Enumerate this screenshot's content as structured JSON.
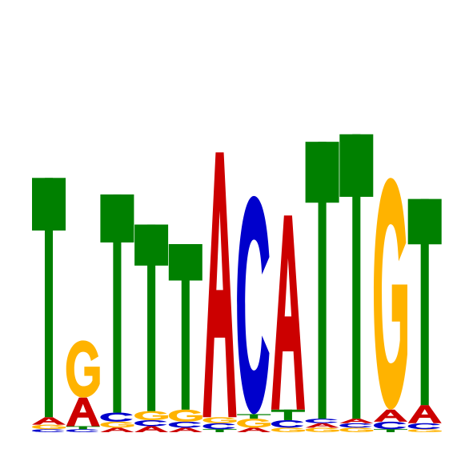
{
  "chart_data": {
    "type": "sequence-logo",
    "title": "",
    "xlabel": "",
    "ylabel": "",
    "ylim": [
      0,
      2
    ],
    "colors": {
      "A": "#cc0000",
      "C": "#0000cc",
      "G": "#ffb300",
      "T": "#008000"
    },
    "positions": [
      {
        "pos": 1,
        "letters": [
          {
            "base": "C",
            "height": 0.02
          },
          {
            "base": "G",
            "height": 0.03
          },
          {
            "base": "A",
            "height": 0.05
          },
          {
            "base": "T",
            "height": 1.59
          }
        ]
      },
      {
        "pos": 2,
        "letters": [
          {
            "base": "C",
            "height": 0.02
          },
          {
            "base": "T",
            "height": 0.02
          },
          {
            "base": "A",
            "height": 0.19
          },
          {
            "base": "G",
            "height": 0.38
          }
        ]
      },
      {
        "pos": 3,
        "letters": [
          {
            "base": "A",
            "height": 0.03
          },
          {
            "base": "G",
            "height": 0.04
          },
          {
            "base": "C",
            "height": 0.06
          },
          {
            "base": "T",
            "height": 1.45
          }
        ]
      },
      {
        "pos": 4,
        "letters": [
          {
            "base": "A",
            "height": 0.04
          },
          {
            "base": "C",
            "height": 0.04
          },
          {
            "base": "G",
            "height": 0.06
          },
          {
            "base": "T",
            "height": 1.24
          }
        ]
      },
      {
        "pos": 5,
        "letters": [
          {
            "base": "A",
            "height": 0.03
          },
          {
            "base": "C",
            "height": 0.04
          },
          {
            "base": "G",
            "height": 0.08
          },
          {
            "base": "T",
            "height": 1.1
          }
        ]
      },
      {
        "pos": 6,
        "letters": [
          {
            "base": "T",
            "height": 0.02
          },
          {
            "base": "C",
            "height": 0.04
          },
          {
            "base": "G",
            "height": 0.04
          },
          {
            "base": "A",
            "height": 1.76
          }
        ]
      },
      {
        "pos": 7,
        "letters": [
          {
            "base": "A",
            "height": 0.03
          },
          {
            "base": "G",
            "height": 0.06
          },
          {
            "base": "T",
            "height": 0.03
          },
          {
            "base": "C",
            "height": 1.45
          }
        ]
      },
      {
        "pos": 8,
        "letters": [
          {
            "base": "G",
            "height": 0.03
          },
          {
            "base": "C",
            "height": 0.05
          },
          {
            "base": "T",
            "height": 0.07
          },
          {
            "base": "A",
            "height": 1.29
          }
        ]
      },
      {
        "pos": 9,
        "letters": [
          {
            "base": "G",
            "height": 0.03
          },
          {
            "base": "A",
            "height": 0.03
          },
          {
            "base": "C",
            "height": 0.03
          },
          {
            "base": "T",
            "height": 1.84
          }
        ]
      },
      {
        "pos": 10,
        "letters": [
          {
            "base": "G",
            "height": 0.03
          },
          {
            "base": "C",
            "height": 0.03
          },
          {
            "base": "A",
            "height": 0.03
          },
          {
            "base": "T",
            "height": 1.89
          }
        ]
      },
      {
        "pos": 11,
        "letters": [
          {
            "base": "T",
            "height": 0.02
          },
          {
            "base": "C",
            "height": 0.05
          },
          {
            "base": "A",
            "height": 0.08
          },
          {
            "base": "G",
            "height": 1.54
          }
        ]
      },
      {
        "pos": 12,
        "letters": [
          {
            "base": "G",
            "height": 0.02
          },
          {
            "base": "C",
            "height": 0.04
          },
          {
            "base": "A",
            "height": 0.12
          },
          {
            "base": "T",
            "height": 1.37
          }
        ]
      }
    ]
  }
}
